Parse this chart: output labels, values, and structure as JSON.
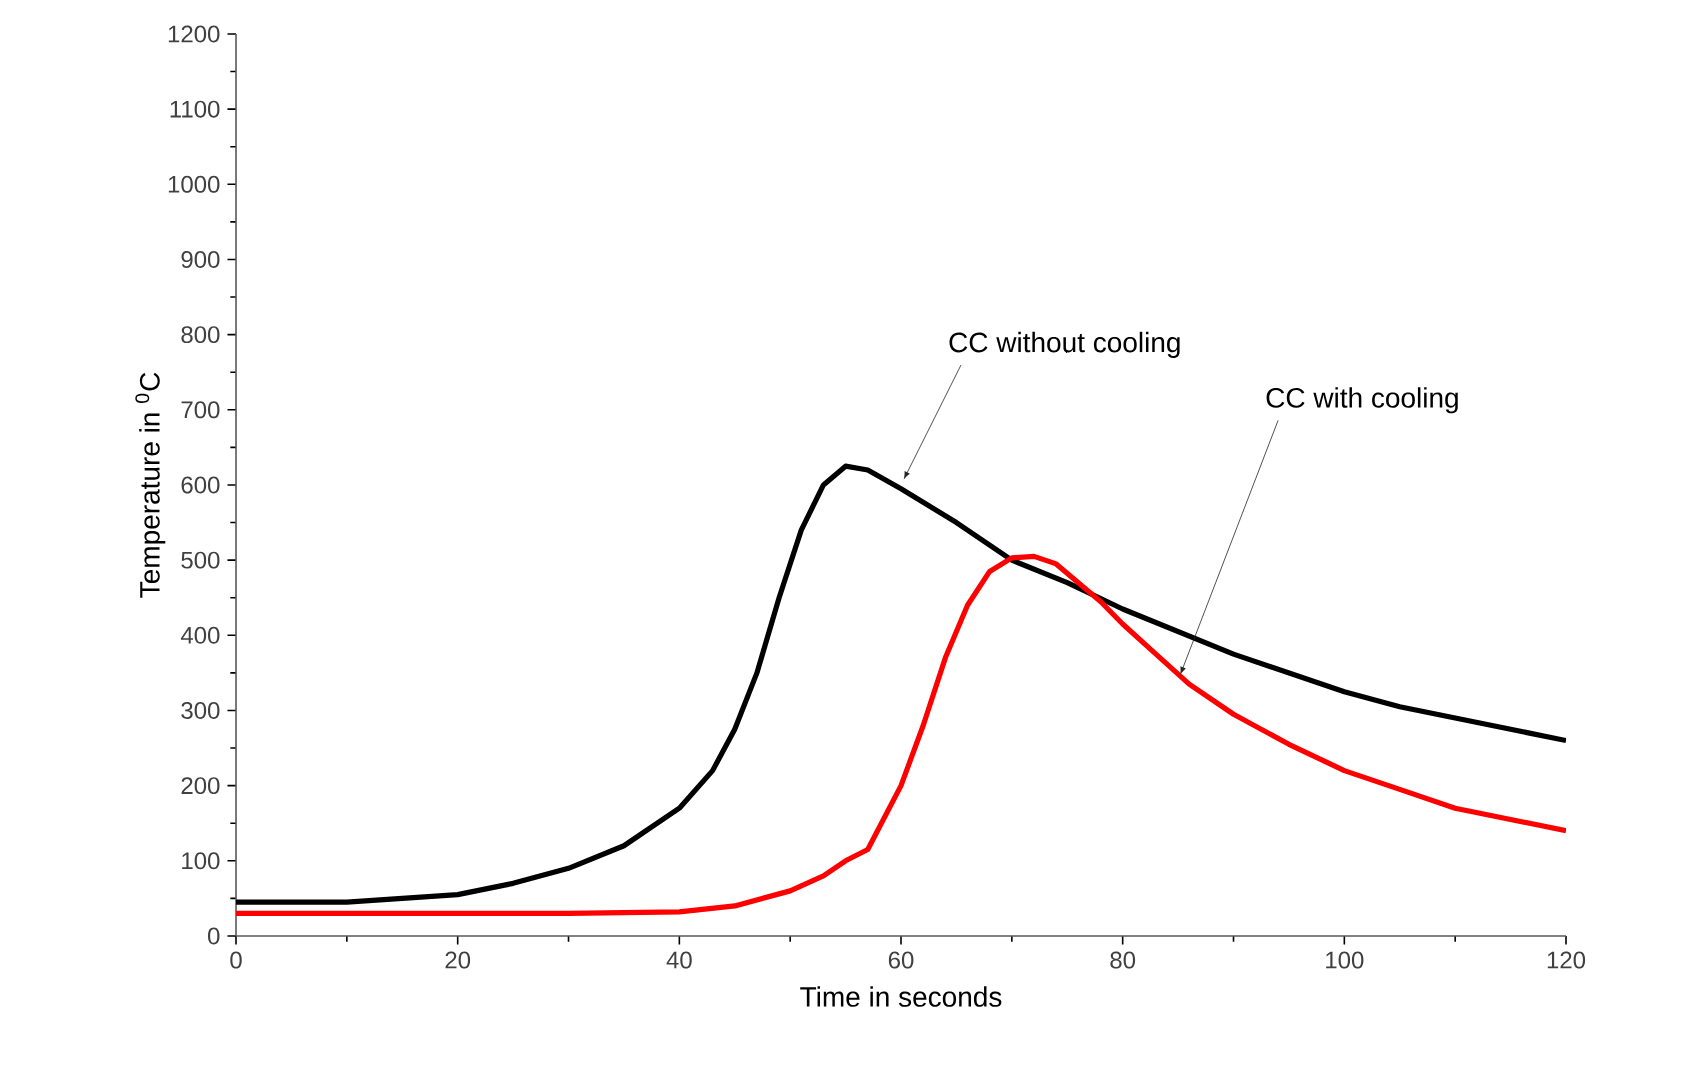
{
  "chart_data": {
    "type": "line",
    "xlabel": "Time in seconds",
    "ylabel": "Temperature in $^{0}$C",
    "xlim": [
      0,
      120
    ],
    "ylim": [
      0,
      1200
    ],
    "xticks": [
      0,
      20,
      40,
      60,
      80,
      100,
      120
    ],
    "yticks": [
      0,
      100,
      200,
      300,
      400,
      500,
      600,
      700,
      800,
      900,
      1000,
      1100,
      1200
    ],
    "grid": false,
    "marker": "none",
    "line_style": "solid",
    "series": [
      {
        "color": "#000000",
        "x": [
          0,
          10,
          20,
          25,
          30,
          35,
          40,
          43,
          45,
          47,
          49,
          51,
          53,
          55,
          57,
          60,
          65,
          70,
          75,
          80,
          85,
          90,
          95,
          100,
          105,
          110,
          115,
          120
        ],
        "values": [
          45,
          45,
          55,
          70,
          90,
          120,
          170,
          220,
          275,
          350,
          450,
          540,
          600,
          625,
          620,
          595,
          550,
          500,
          470,
          435,
          405,
          375,
          350,
          325,
          305,
          290,
          275,
          260
        ]
      },
      {
        "color": "#ff0000",
        "x": [
          0,
          20,
          30,
          40,
          45,
          50,
          53,
          55,
          57,
          60,
          62,
          64,
          66,
          68,
          70,
          72,
          74,
          76,
          78,
          80,
          83,
          86,
          90,
          95,
          100,
          105,
          110,
          115,
          120
        ],
        "values": [
          30,
          30,
          30,
          32,
          40,
          60,
          80,
          100,
          115,
          200,
          280,
          370,
          440,
          485,
          503,
          505,
          495,
          470,
          445,
          415,
          375,
          335,
          295,
          255,
          220,
          195,
          170,
          155,
          140
        ]
      }
    ],
    "annotations": [
      {
        "text": "CC without cooling",
        "x": 60,
        "y": 600
      },
      {
        "text": "CC with cooling",
        "x": 85,
        "y": 340
      }
    ]
  }
}
